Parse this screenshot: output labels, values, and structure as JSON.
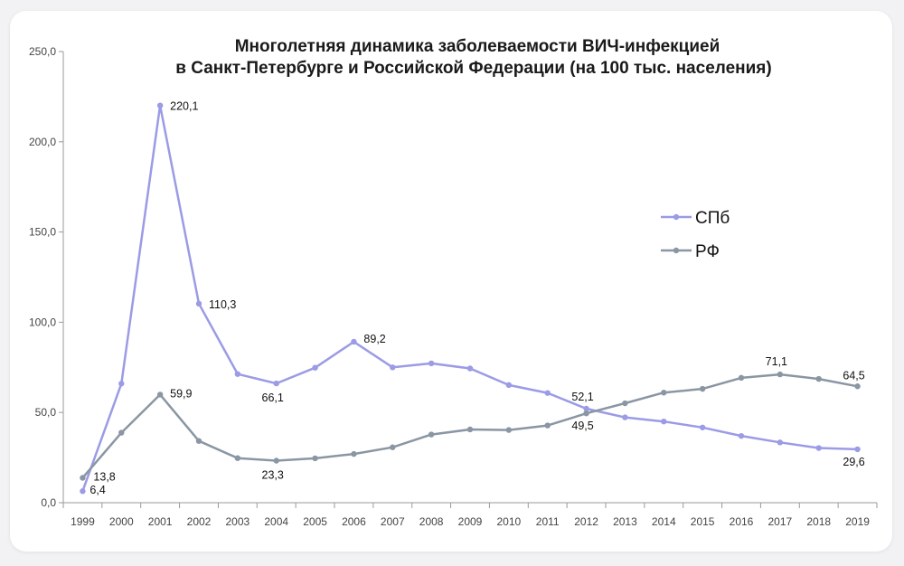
{
  "colors": {
    "spb": "#9b9be6",
    "rf": "#8a96a3",
    "axis": "#9a9a9a"
  },
  "chart_data": {
    "type": "line",
    "title": "Многолетняя динамика заболеваемости ВИЧ-инфекцией",
    "subtitle": "в Санкт-Петербурге и Российской Федерации (на 100 тыс. населения)",
    "xlabel": "",
    "ylabel": "",
    "ylim": [
      0,
      250
    ],
    "yticks": [
      "0,0",
      "50,0",
      "100,0",
      "150,0",
      "200,0",
      "250,0"
    ],
    "grid": false,
    "legend_position": "right",
    "categories": [
      "1999",
      "2000",
      "2001",
      "2002",
      "2003",
      "2004",
      "2005",
      "2006",
      "2007",
      "2008",
      "2009",
      "2010",
      "2011",
      "2012",
      "2013",
      "2014",
      "2015",
      "2016",
      "2017",
      "2018",
      "2019"
    ],
    "series": [
      {
        "name": "СПб",
        "values": [
          6.4,
          66.0,
          220.1,
          110.3,
          71.3,
          66.1,
          74.8,
          89.2,
          75.0,
          77.2,
          74.4,
          65.2,
          60.8,
          52.1,
          47.3,
          45.0,
          41.7,
          37.0,
          33.4,
          30.3,
          29.6
        ],
        "labels": {
          "0": "6,4",
          "2": "220,1",
          "3": "110,3",
          "5": "66,1",
          "7": "89,2",
          "13": "52,1",
          "20": "29,6"
        }
      },
      {
        "name": "РФ",
        "values": [
          13.8,
          38.8,
          59.9,
          34.2,
          24.7,
          23.3,
          24.6,
          27.0,
          30.7,
          37.8,
          40.6,
          40.3,
          42.8,
          49.5,
          55.1,
          61.0,
          63.1,
          69.2,
          71.1,
          68.6,
          64.5
        ],
        "labels": {
          "0": "13,8",
          "2": "59,9",
          "5": "23,3",
          "13": "49,5",
          "18": "71,1",
          "20": "64,5"
        }
      }
    ]
  }
}
